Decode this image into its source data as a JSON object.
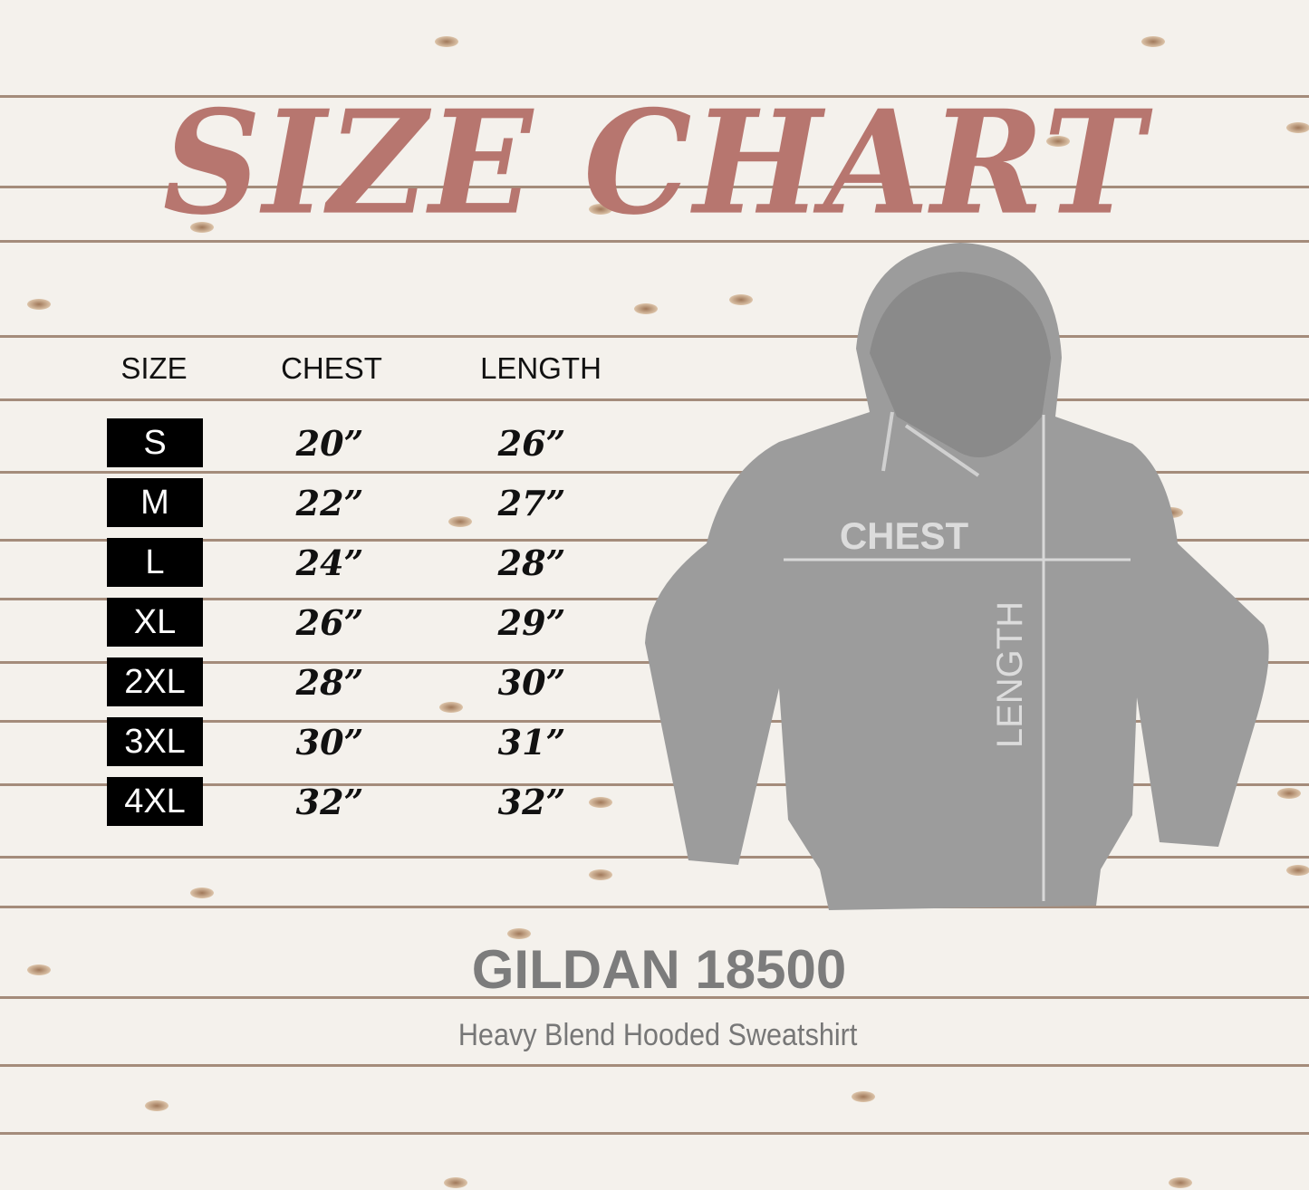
{
  "title": "SIZE CHART",
  "headers": {
    "size": "SIZE",
    "chest": "CHEST",
    "length": "LENGTH"
  },
  "rows": [
    {
      "size": "S",
      "chest": "20”",
      "length": "26”"
    },
    {
      "size": "M",
      "chest": "22”",
      "length": "27”"
    },
    {
      "size": "L",
      "chest": "24”",
      "length": "28”"
    },
    {
      "size": "XL",
      "chest": "26”",
      "length": "29”"
    },
    {
      "size": "2XL",
      "chest": "28”",
      "length": "30”"
    },
    {
      "size": "3XL",
      "chest": "30”",
      "length": "31”"
    },
    {
      "size": "4XL",
      "chest": "32”",
      "length": "32”"
    }
  ],
  "diagram": {
    "chest_label": "CHEST",
    "length_label": "LENGTH"
  },
  "brand": "GILDAN 18500",
  "product": "Heavy Blend Hooded Sweatshirt",
  "colors": {
    "title": "#b7766f",
    "hoodie": "#9a9a9a",
    "size_box": "#000000",
    "brand": "#7c7c7c"
  }
}
